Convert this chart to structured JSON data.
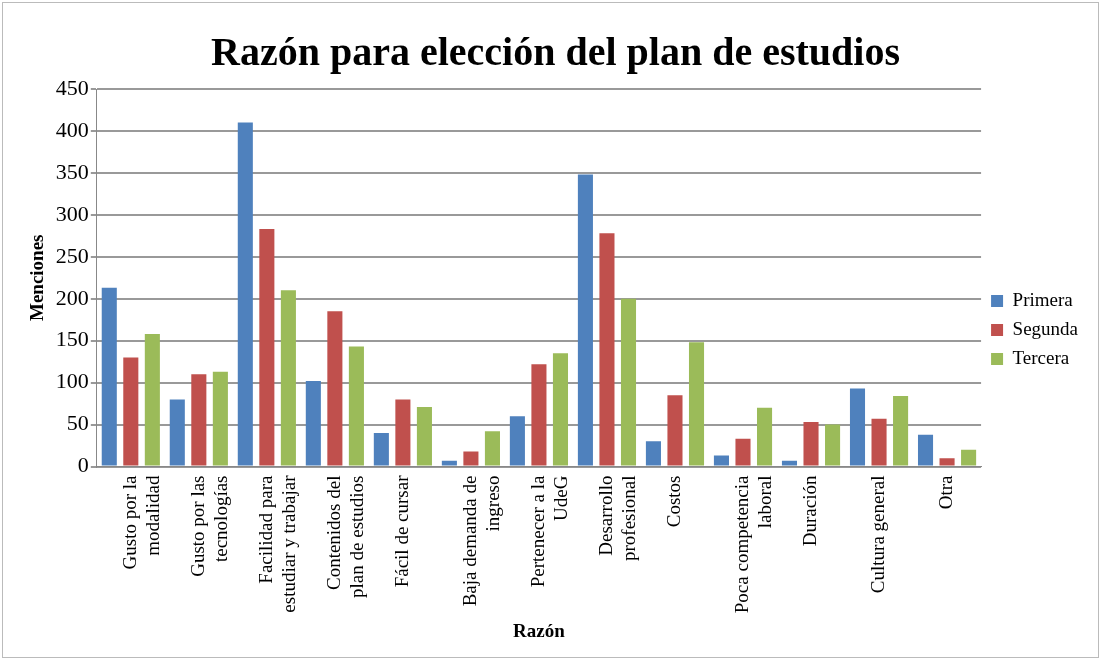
{
  "chart_data": {
    "type": "bar",
    "title": "Razón para elección del plan de estudios",
    "xlabel": "Razón",
    "ylabel": "Menciones",
    "categories": [
      "Gusto por la modalidad",
      "Gusto por las tecnologías",
      "Facilidad para estudiar y trabajar",
      "Contenidos del plan de estudios",
      "Fácil de cursar",
      "Baja demanda de ingreso",
      "Pertenecer a la UdeG",
      "Desarrollo profesional",
      "Costos",
      "Poca competencia laboral",
      "Duración",
      "Cultura general",
      "Otra"
    ],
    "series": [
      {
        "name": "Primera",
        "color": "#4f81bd",
        "values": [
          213,
          80,
          410,
          102,
          40,
          7,
          60,
          348,
          30,
          13,
          7,
          93,
          38
        ]
      },
      {
        "name": "Segunda",
        "color": "#c0504d",
        "values": [
          130,
          110,
          283,
          185,
          80,
          18,
          122,
          278,
          85,
          33,
          53,
          57,
          10
        ]
      },
      {
        "name": "Tercera",
        "color": "#9bbb59",
        "values": [
          158,
          113,
          210,
          143,
          71,
          42,
          135,
          200,
          148,
          70,
          50,
          84,
          20
        ]
      }
    ],
    "ylim": [
      0,
      450
    ],
    "yticks": [
      0,
      50,
      100,
      150,
      200,
      250,
      300,
      350,
      400,
      450
    ],
    "grid": "y",
    "legend": "right"
  }
}
